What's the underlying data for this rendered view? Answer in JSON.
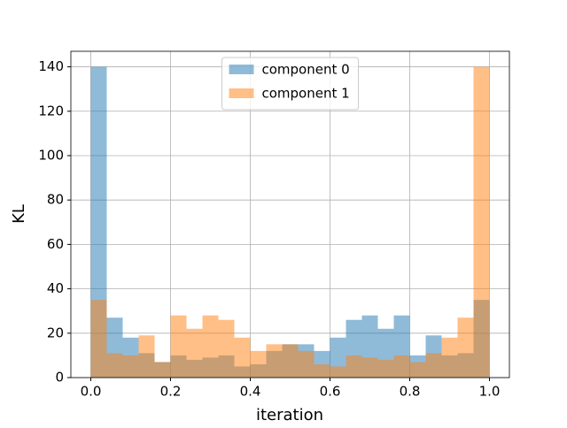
{
  "chart_data": {
    "type": "histogram",
    "x_label": "iteration",
    "y_label": "KL",
    "bins": [
      0,
      0.04,
      0.08,
      0.12,
      0.16,
      0.2,
      0.24,
      0.28,
      0.32,
      0.36,
      0.4,
      0.44,
      0.48,
      0.52,
      0.56,
      0.6,
      0.64,
      0.68,
      0.72,
      0.76,
      0.8,
      0.84,
      0.88,
      0.92,
      0.96,
      1
    ],
    "series": [
      {
        "name": "component 0",
        "color": "#1f77b4",
        "values": [
          140,
          27,
          18,
          11,
          7,
          10,
          8,
          9,
          10,
          5,
          6,
          12,
          15,
          15,
          12,
          18,
          26,
          28,
          22,
          28,
          10,
          19,
          10,
          11,
          35
        ]
      },
      {
        "name": "component 1",
        "color": "#ff7f0e",
        "values": [
          35,
          11,
          10,
          19,
          7,
          28,
          22,
          28,
          26,
          18,
          12,
          15,
          15,
          12,
          6,
          5,
          10,
          9,
          8,
          10,
          7,
          11,
          18,
          27,
          140
        ]
      }
    ],
    "opacity": 0.5,
    "xlim": [
      -0.05,
      1.05
    ],
    "ylim": [
      0,
      147
    ],
    "xticks": [
      {
        "value": 0,
        "label": "0.0"
      },
      {
        "value": 0.2,
        "label": "0.2"
      },
      {
        "value": 0.4,
        "label": "0.4"
      },
      {
        "value": 0.6,
        "label": "0.6"
      },
      {
        "value": 0.8,
        "label": "0.8"
      },
      {
        "value": 1,
        "label": "1.0"
      }
    ],
    "yticks": [
      0,
      20,
      40,
      60,
      80,
      100,
      120,
      140
    ],
    "grid": true,
    "legend": "upper center"
  }
}
